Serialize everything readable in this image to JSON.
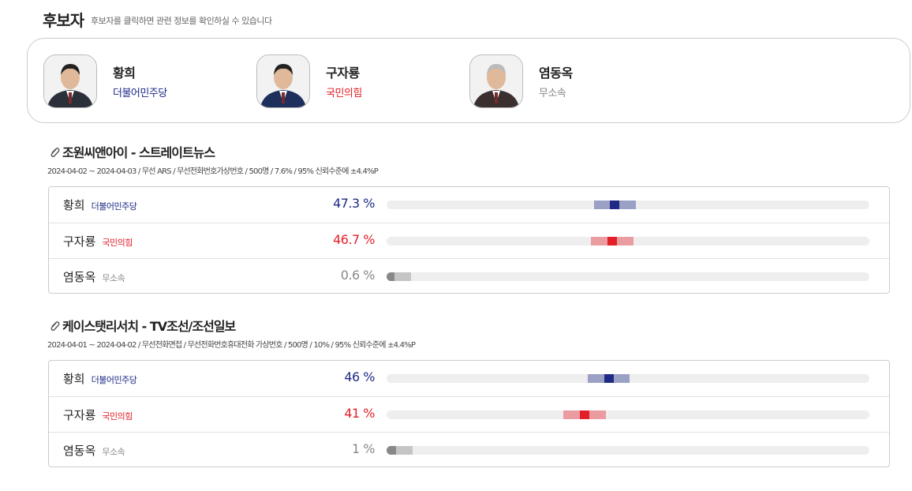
{
  "header": {
    "title": "후보자",
    "subtitle": "후보자를 클릭하면 관련 정보를 확인하실 수 있습니다"
  },
  "candidates": [
    {
      "name": "황희",
      "party": "더불어민주당",
      "color": "#1e2a86"
    },
    {
      "name": "구자룡",
      "party": "국민의힘",
      "color": "#e3202a"
    },
    {
      "name": "염동옥",
      "party": "무소속",
      "color": "#888888"
    }
  ],
  "polls": [
    {
      "title": "조원씨앤아이 - 스트레이트뉴스",
      "meta": "2024-04-02 ~ 2024-04-03 / 무선 ARS / 무선전화번호가상번호 / 500명 / 7.6% / 95% 신뢰수준에 ±",
      "margin": {
        "value": 4.4,
        "label": "4.4%P"
      },
      "rows": [
        {
          "name": "황희",
          "party": "더불어민주당",
          "color": "#1e2a86",
          "value": {
            "value": 47.3,
            "label": "47.3 %"
          }
        },
        {
          "name": "구자룡",
          "party": "국민의힘",
          "color": "#e3202a",
          "value": {
            "value": 46.7,
            "label": "46.7 %"
          }
        },
        {
          "name": "염동옥",
          "party": "무소속",
          "color": "#888888",
          "value": {
            "value": 0.6,
            "label": "0.6 %"
          }
        }
      ]
    },
    {
      "title": "케이스탯리서치 - TV조선/조선일보",
      "meta": "2024-04-01 ~ 2024-04-02 / 무선전화면접 / 무선전화번호휴대전화 가상번호 / 500명 / 10% / 95% 신뢰수준에 ±",
      "margin": {
        "value": 4.4,
        "label": "4.4%P"
      },
      "rows": [
        {
          "name": "황희",
          "party": "더불어민주당",
          "color": "#1e2a86",
          "value": {
            "value": 46,
            "label": "46 %"
          }
        },
        {
          "name": "구자룡",
          "party": "국민의힘",
          "color": "#e3202a",
          "value": {
            "value": 41,
            "label": "41 %"
          }
        },
        {
          "name": "염동옥",
          "party": "무소속",
          "color": "#888888",
          "value": {
            "value": 1,
            "label": "1 %"
          }
        }
      ]
    }
  ]
}
